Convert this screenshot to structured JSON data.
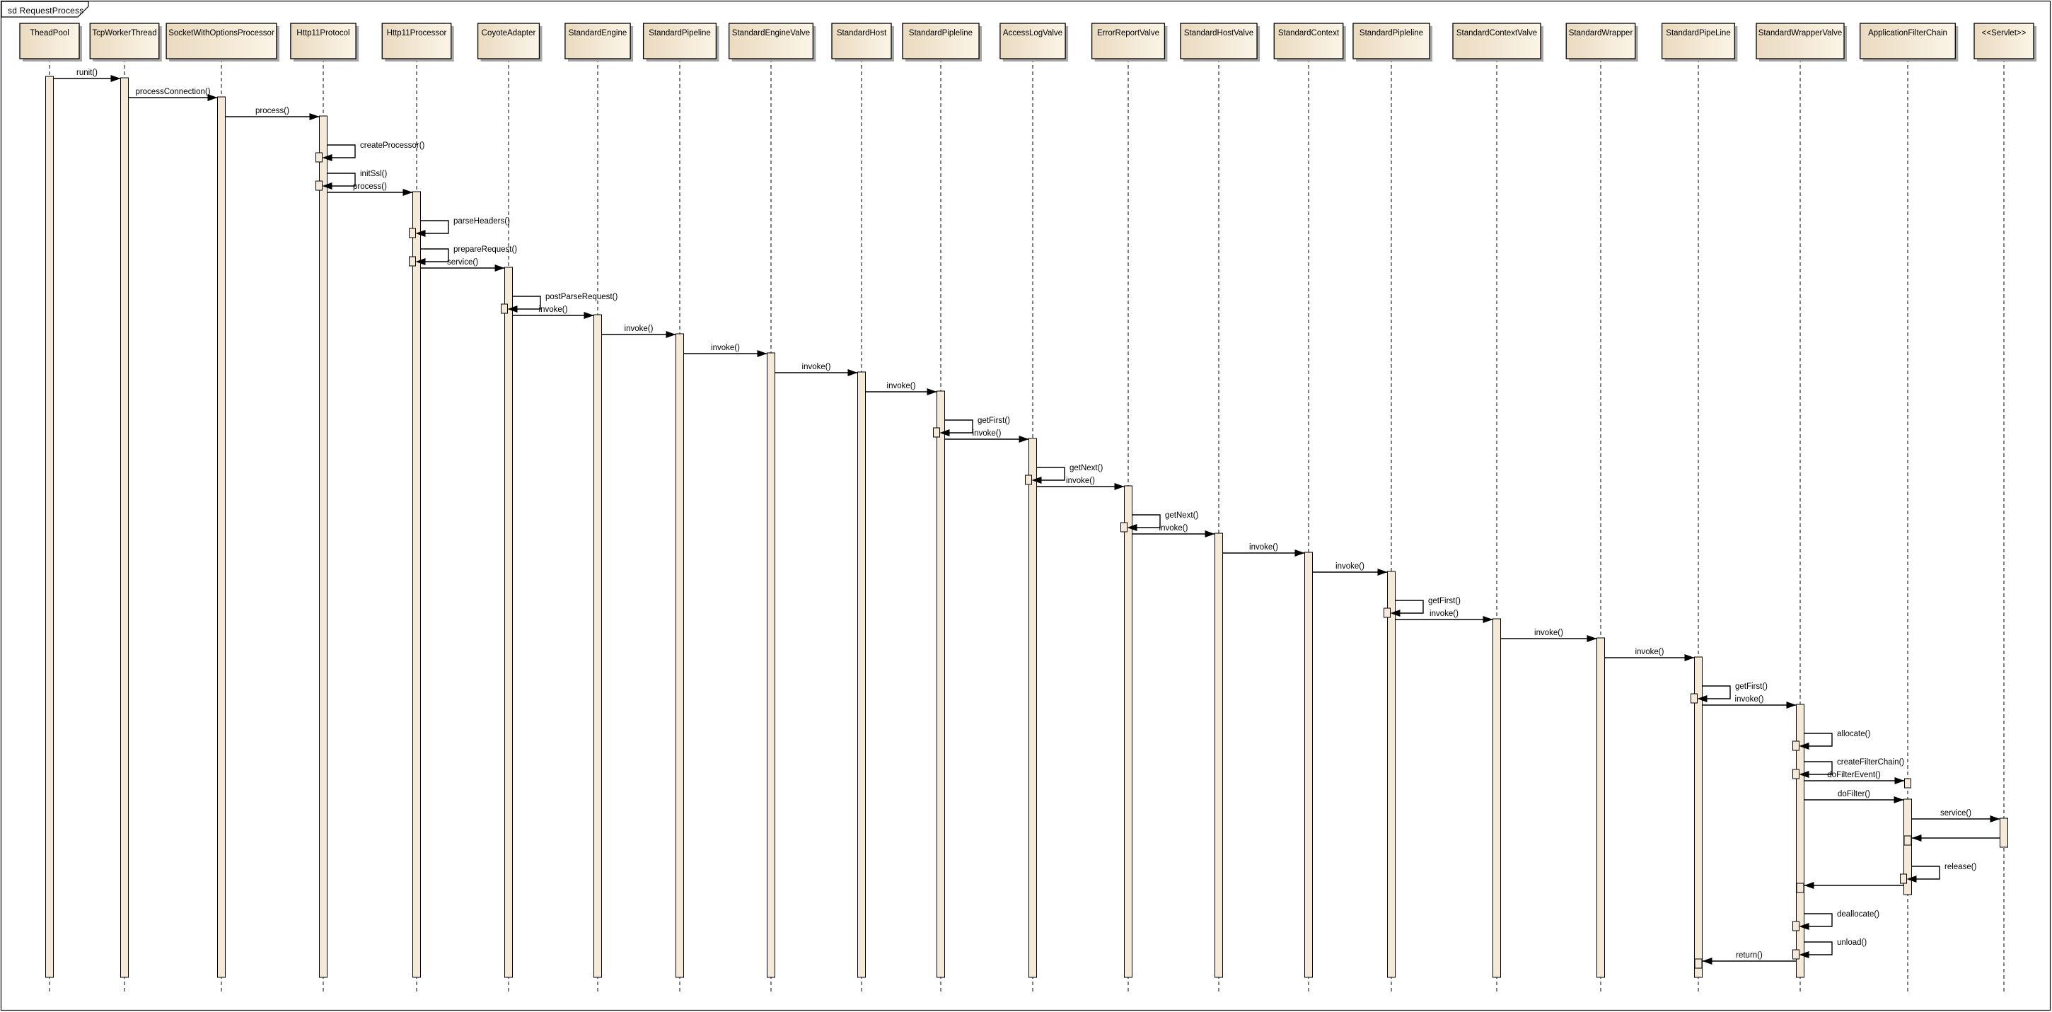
{
  "frame": {
    "title": "sd RequestProcess"
  },
  "diagram": {
    "type": "uml-sequence",
    "participants": [
      {
        "label": "TheadPool"
      },
      {
        "label": "TcpWorkerThread"
      },
      {
        "label": "SocketWithOptionsProcessor"
      },
      {
        "label": "Http11Protocol"
      },
      {
        "label": "Http11Processor"
      },
      {
        "label": "CoyoteAdapter"
      },
      {
        "label": "StandardEngine"
      },
      {
        "label": "StandardPipeline"
      },
      {
        "label": "StandardEngineValve"
      },
      {
        "label": "StandardHost"
      },
      {
        "label": "StandardPipleline"
      },
      {
        "label": "AccessLogValve"
      },
      {
        "label": "ErrorReportValve"
      },
      {
        "label": "StandardHostValve"
      },
      {
        "label": "StandardContext"
      },
      {
        "label": "StandardPipleline"
      },
      {
        "label": "StandardContextValve"
      },
      {
        "label": "StandardWrapper"
      },
      {
        "label": "StandardPipeLine"
      },
      {
        "label": "StandardWrapperValve"
      },
      {
        "label": "ApplicationFilterChain"
      },
      {
        "label": "<<Servlet>>"
      }
    ],
    "messages": [
      {
        "label": "runit()",
        "from": 0,
        "to": 1,
        "kind": "call"
      },
      {
        "label": "processConnection()",
        "from": 1,
        "to": 2,
        "kind": "call"
      },
      {
        "label": "process()",
        "from": 2,
        "to": 3,
        "kind": "call"
      },
      {
        "label": "createProcessor()",
        "from": 3,
        "to": 3,
        "kind": "self"
      },
      {
        "label": "initSsl()",
        "from": 3,
        "to": 3,
        "kind": "self"
      },
      {
        "label": "process()",
        "from": 3,
        "to": 4,
        "kind": "call"
      },
      {
        "label": "parseHeaders()",
        "from": 4,
        "to": 4,
        "kind": "self"
      },
      {
        "label": "prepareRequest()",
        "from": 4,
        "to": 4,
        "kind": "self"
      },
      {
        "label": "service()",
        "from": 4,
        "to": 5,
        "kind": "call"
      },
      {
        "label": "postParseRequest()",
        "from": 5,
        "to": 5,
        "kind": "self"
      },
      {
        "label": "invoke()",
        "from": 5,
        "to": 6,
        "kind": "call"
      },
      {
        "label": "invoke()",
        "from": 6,
        "to": 7,
        "kind": "call"
      },
      {
        "label": "invoke()",
        "from": 7,
        "to": 8,
        "kind": "call"
      },
      {
        "label": "invoke()",
        "from": 8,
        "to": 9,
        "kind": "call"
      },
      {
        "label": "invoke()",
        "from": 9,
        "to": 10,
        "kind": "call"
      },
      {
        "label": "getFirst()",
        "from": 10,
        "to": 10,
        "kind": "self"
      },
      {
        "label": "invoke()",
        "from": 10,
        "to": 11,
        "kind": "call"
      },
      {
        "label": "getNext()",
        "from": 11,
        "to": 11,
        "kind": "self"
      },
      {
        "label": "invoke()",
        "from": 11,
        "to": 12,
        "kind": "call"
      },
      {
        "label": "getNext()",
        "from": 12,
        "to": 12,
        "kind": "self"
      },
      {
        "label": "invoke()",
        "from": 12,
        "to": 13,
        "kind": "call"
      },
      {
        "label": "invoke()",
        "from": 13,
        "to": 14,
        "kind": "call"
      },
      {
        "label": "invoke()",
        "from": 14,
        "to": 15,
        "kind": "call"
      },
      {
        "label": "getFirst()",
        "from": 15,
        "to": 15,
        "kind": "self"
      },
      {
        "label": "invoke()",
        "from": 15,
        "to": 16,
        "kind": "call"
      },
      {
        "label": "invoke()",
        "from": 16,
        "to": 17,
        "kind": "call"
      },
      {
        "label": "invoke()",
        "from": 17,
        "to": 18,
        "kind": "call"
      },
      {
        "label": "getFirst()",
        "from": 18,
        "to": 18,
        "kind": "self"
      },
      {
        "label": "invoke()",
        "from": 18,
        "to": 19,
        "kind": "call"
      },
      {
        "label": "allocate()",
        "from": 19,
        "to": 19,
        "kind": "self"
      },
      {
        "label": "createFilterChain()",
        "from": 19,
        "to": 19,
        "kind": "self"
      },
      {
        "label": "doFilterEvent()",
        "from": 19,
        "to": 20,
        "kind": "call",
        "arrival": "square"
      },
      {
        "label": "doFilter()",
        "from": 19,
        "to": 20,
        "kind": "call"
      },
      {
        "label": "service()",
        "from": 20,
        "to": 21,
        "kind": "call"
      },
      {
        "label": "",
        "from": 21,
        "to": 20,
        "kind": "return"
      },
      {
        "label": "release()",
        "from": 20,
        "to": 20,
        "kind": "self"
      },
      {
        "label": "",
        "from": 20,
        "to": 19,
        "kind": "return"
      },
      {
        "label": "deallocate()",
        "from": 19,
        "to": 19,
        "kind": "self"
      },
      {
        "label": "unload()",
        "from": 19,
        "to": 19,
        "kind": "self"
      },
      {
        "label": "return()",
        "from": 19,
        "to": 18,
        "kind": "return"
      }
    ],
    "colors": {
      "box_fill_dark": "#eadac0",
      "box_fill_light": "#fbf5e7",
      "activation_fill": "#f5ead8",
      "shadow": "#a8a8a8",
      "line": "#000000",
      "background": "#ffffff"
    }
  }
}
